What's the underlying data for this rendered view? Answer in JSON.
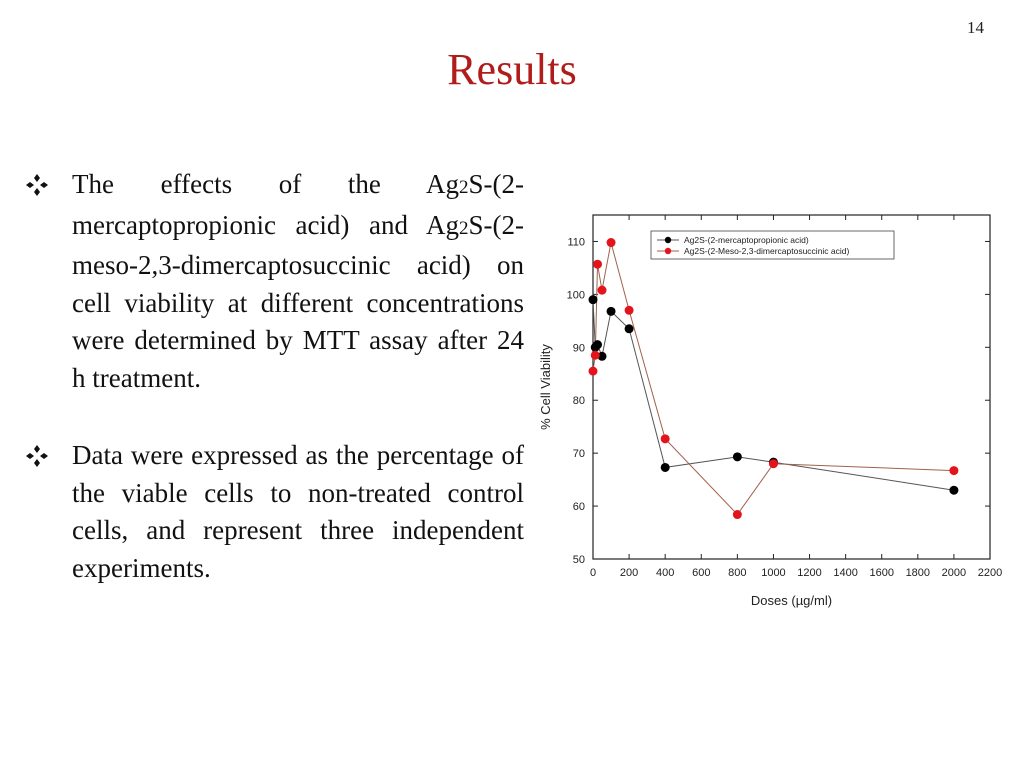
{
  "slide": {
    "number": "14",
    "title": "Results"
  },
  "bullets": [
    {
      "icon": "diamond-bullet-icon",
      "parts": [
        "The effects of the Ag",
        "2",
        "S-(2-mercaptopropionic acid) and Ag",
        "2",
        "S-(2-meso-2,3-dimercaptosuccinic acid) on cell viability at different concentrations were determined by MTT assay after 24 h treatment."
      ]
    },
    {
      "icon": "diamond-bullet-icon",
      "parts": [
        "Data were expressed as the percentage of the viable cells to non-treated control cells, and represent three independent experiments."
      ]
    }
  ],
  "chart_data": {
    "type": "line",
    "xlabel": "Doses (µg/ml)",
    "ylabel": "% Cell Viability",
    "xlim": [
      0,
      2200
    ],
    "ylim": [
      50,
      115
    ],
    "xticks": [
      0,
      200,
      400,
      600,
      800,
      1000,
      1200,
      1400,
      1600,
      1800,
      2000,
      2200
    ],
    "yticks": [
      50,
      60,
      70,
      80,
      90,
      100,
      110
    ],
    "legend_position": "top-right",
    "grid": false,
    "series": [
      {
        "name": "Ag2S-(2-mercaptopropionic acid)",
        "marker_color": "#000000",
        "line_color": "#555555",
        "x": [
          0,
          12.5,
          25,
          50,
          100,
          200,
          400,
          800,
          1000,
          2000
        ],
        "y": [
          99,
          90,
          90.5,
          88.3,
          96.8,
          93.5,
          67.3,
          69.3,
          68.3,
          63
        ]
      },
      {
        "name": "Ag2S-(2-Meso-2,3-dimercaptosuccinic acid)",
        "marker_color": "#e3141b",
        "line_color": "#a0604a",
        "x": [
          0,
          12.5,
          25,
          50,
          100,
          200,
          400,
          800,
          1000,
          2000
        ],
        "y": [
          85.5,
          88.5,
          105.7,
          100.8,
          109.8,
          97,
          72.7,
          58.4,
          68,
          66.7
        ]
      }
    ]
  }
}
